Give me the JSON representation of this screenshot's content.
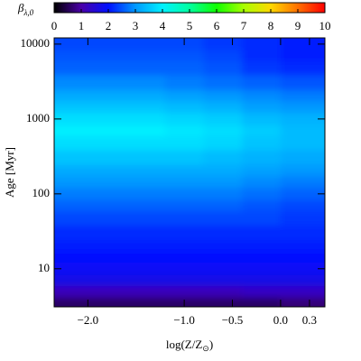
{
  "chart_data": {
    "type": "heatmap",
    "xlabel": [
      "log(Z/Z",
      "⊙",
      ")"
    ],
    "ylabel": "Age  [Myr]",
    "colorbar_label": "β",
    "colorbar_label_sub": "λ,0",
    "xlim": [
      -2.35,
      0.46
    ],
    "xticks": [
      {
        "value": -2.0,
        "label": "−2.0"
      },
      {
        "value": -1.0,
        "label": "−1.0"
      },
      {
        "value": -0.5,
        "label": "−0.5"
      },
      {
        "value": 0.0,
        "label": "0.0"
      },
      0.3
    ],
    "ylim": [
      3.1,
      12100
    ],
    "yscale": "log",
    "yticks": [
      10,
      100,
      1000,
      10000
    ],
    "clim": [
      0,
      10
    ],
    "cticks": [
      0,
      1,
      2,
      3,
      4,
      5,
      6,
      7,
      8,
      9,
      10
    ],
    "colormap": [
      "#000000",
      "#4a00a8",
      "#0010ff",
      "#0098ff",
      "#00f0ff",
      "#00ffa0",
      "#10ff00",
      "#a8ff00",
      "#ffd800",
      "#ff7000",
      "#ff0000"
    ],
    "x": [
      -2.2,
      -1.8,
      -1.4,
      -1.0,
      -0.6,
      -0.2,
      0.2
    ],
    "y": [
      3.5,
      5,
      7,
      10,
      15,
      20,
      30,
      50,
      70,
      100,
      150,
      200,
      300,
      500,
      700,
      1000,
      1500,
      2000,
      3000,
      5000,
      7000,
      10000
    ],
    "values": [
      [
        0.6,
        0.6,
        0.6,
        0.6,
        0.6,
        0.6,
        0.7
      ],
      [
        1.2,
        1.2,
        1.2,
        1.2,
        1.2,
        1.3,
        1.3
      ],
      [
        1.7,
        1.7,
        1.7,
        1.7,
        1.7,
        1.7,
        1.7
      ],
      [
        1.9,
        1.9,
        1.9,
        1.9,
        1.9,
        1.9,
        1.9
      ],
      [
        2.0,
        2.0,
        2.0,
        2.0,
        2.0,
        2.0,
        2.0
      ],
      [
        2.1,
        2.1,
        2.1,
        2.1,
        2.1,
        2.1,
        2.1
      ],
      [
        2.2,
        2.2,
        2.2,
        2.2,
        2.2,
        2.2,
        2.2
      ],
      [
        2.4,
        2.4,
        2.4,
        2.4,
        2.4,
        2.4,
        2.3
      ],
      [
        2.6,
        2.6,
        2.6,
        2.6,
        2.6,
        2.5,
        2.4
      ],
      [
        2.8,
        2.8,
        2.8,
        2.8,
        2.8,
        2.7,
        2.6
      ],
      [
        3.0,
        3.0,
        3.0,
        3.0,
        3.0,
        2.9,
        2.8
      ],
      [
        3.2,
        3.2,
        3.2,
        3.2,
        3.2,
        3.1,
        3.0
      ],
      [
        3.5,
        3.5,
        3.5,
        3.5,
        3.4,
        3.3,
        3.2
      ],
      [
        3.8,
        3.8,
        3.8,
        3.8,
        3.7,
        3.5,
        3.4
      ],
      [
        4.0,
        4.0,
        4.0,
        3.9,
        3.8,
        3.6,
        3.4
      ],
      [
        3.8,
        3.8,
        3.8,
        3.7,
        3.6,
        3.4,
        3.3
      ],
      [
        3.5,
        3.5,
        3.5,
        3.4,
        3.3,
        3.1,
        3.0
      ],
      [
        3.2,
        3.2,
        3.2,
        3.1,
        3.0,
        2.9,
        2.8
      ],
      [
        2.9,
        2.9,
        2.9,
        2.8,
        2.7,
        2.6,
        2.5
      ],
      [
        2.6,
        2.6,
        2.6,
        2.6,
        2.5,
        2.3,
        2.2
      ],
      [
        2.5,
        2.5,
        2.5,
        2.5,
        2.4,
        2.2,
        2.1
      ],
      [
        2.4,
        2.4,
        2.4,
        2.4,
        2.3,
        2.2,
        2.1
      ]
    ]
  }
}
